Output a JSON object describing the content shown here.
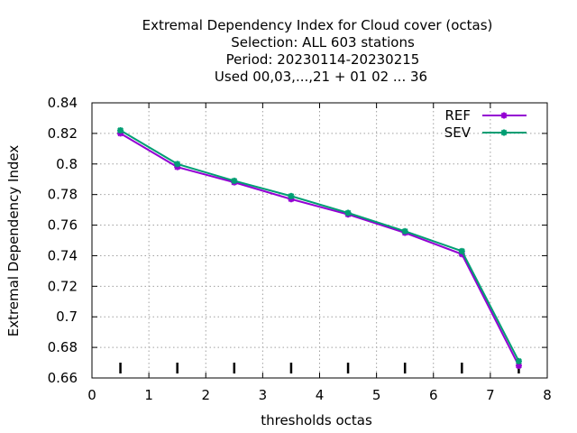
{
  "chart_data": {
    "type": "line",
    "title_lines": [
      "Extremal Dependency Index  for Cloud cover (octas)",
      "Selection: ALL    603 stations",
      "Period: 20230114-20230215",
      "Used  00,03,...,21  + 01 02 ... 36"
    ],
    "xlabel": "thresholds octas",
    "ylabel": "Extremal Dependency Index",
    "xlim": [
      0,
      8
    ],
    "ylim": [
      0.66,
      0.84
    ],
    "xticks": [
      0,
      1,
      2,
      3,
      4,
      5,
      6,
      7,
      8
    ],
    "xtick_labels": [
      "0",
      "1",
      "2",
      "3",
      "4",
      "5",
      "6",
      "7",
      "8"
    ],
    "yticks": [
      0.66,
      0.68,
      0.7,
      0.72,
      0.74,
      0.76,
      0.78,
      0.8,
      0.82,
      0.84
    ],
    "ytick_labels": [
      "0.66",
      "0.68",
      "0.7",
      "0.72",
      "0.74",
      "0.76",
      "0.78",
      "0.8",
      "0.82",
      "0.84"
    ],
    "grid": true,
    "legend_position": "top-right",
    "x": [
      0.5,
      1.5,
      2.5,
      3.5,
      4.5,
      5.5,
      6.5,
      7.5
    ],
    "series": [
      {
        "name": "REF",
        "color": "#9400d3",
        "values": [
          0.82,
          0.798,
          0.788,
          0.777,
          0.767,
          0.755,
          0.741,
          0.668
        ]
      },
      {
        "name": "SEV",
        "color": "#009e73",
        "values": [
          0.822,
          0.8,
          0.789,
          0.779,
          0.768,
          0.756,
          0.743,
          0.671
        ]
      }
    ],
    "threshold_markers_x": [
      0.5,
      1.5,
      2.5,
      3.5,
      4.5,
      5.5,
      6.5,
      7.5
    ]
  }
}
